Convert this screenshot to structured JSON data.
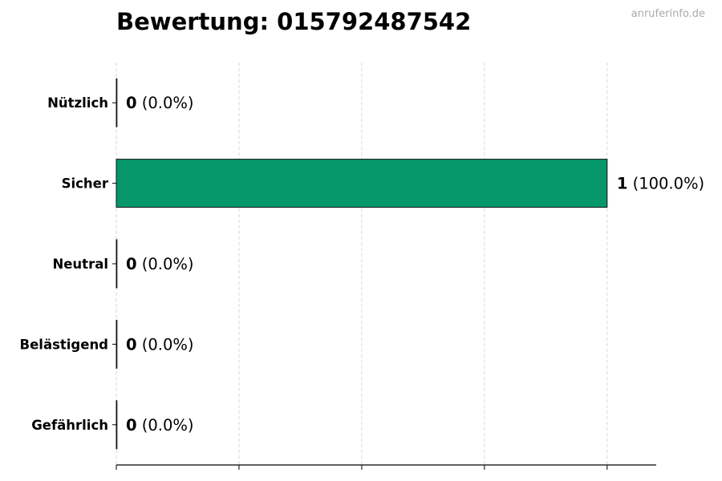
{
  "chart_data": {
    "type": "bar",
    "orientation": "horizontal",
    "title": "Bewertung: 015792487542",
    "watermark": "anruferinfo.de",
    "categories": [
      "Nützlich",
      "Sicher",
      "Neutral",
      "Belästigend",
      "Gefährlich"
    ],
    "values": [
      0,
      1,
      0,
      0,
      0
    ],
    "labels": [
      {
        "count": "0",
        "pct": "(0.0%)"
      },
      {
        "count": "1",
        "pct": "(100.0%)"
      },
      {
        "count": "0",
        "pct": "(0.0%)"
      },
      {
        "count": "0",
        "pct": "(0.0%)"
      },
      {
        "count": "0",
        "pct": "(0.0%)"
      }
    ],
    "xlim": [
      0,
      1.1
    ],
    "xticks": [
      0,
      0.25,
      0.5,
      0.75,
      1.0
    ],
    "grid": "x dashed",
    "bar_color": "#05976a",
    "xlabel": "",
    "ylabel": ""
  }
}
